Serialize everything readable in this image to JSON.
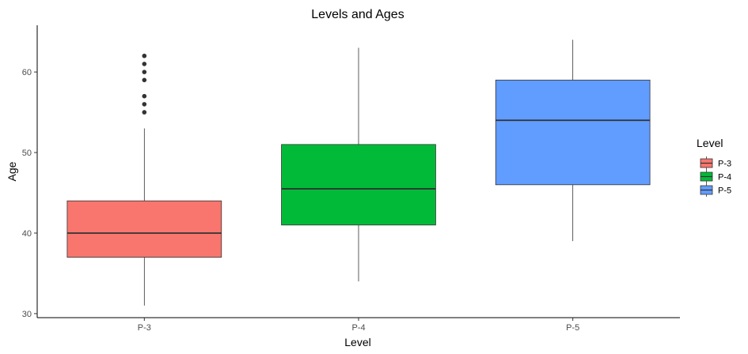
{
  "chart_data": {
    "type": "boxplot",
    "title": "Levels and Ages",
    "xlabel": "Level",
    "ylabel": "Age",
    "ylim": [
      29.5,
      65.8
    ],
    "yticks": [
      30,
      40,
      50,
      60
    ],
    "grid": false,
    "legend": {
      "title": "Level",
      "placement": "right",
      "entries": [
        "P-3",
        "P-4",
        "P-5"
      ]
    },
    "categories": [
      "P-3",
      "P-4",
      "P-5"
    ],
    "boxes": [
      {
        "category": "P-3",
        "color": "#F8766D",
        "whisker_low": 31,
        "q1": 37,
        "median": 40,
        "q3": 44,
        "whisker_high": 53,
        "outliers": [
          55,
          56,
          57,
          59,
          60,
          61,
          62
        ]
      },
      {
        "category": "P-4",
        "color": "#00BA38",
        "whisker_low": 34,
        "q1": 41,
        "median": 45.5,
        "q3": 51,
        "whisker_high": 63,
        "outliers": []
      },
      {
        "category": "P-5",
        "color": "#619CFF",
        "whisker_low": 39,
        "q1": 46,
        "median": 54,
        "q3": 59,
        "whisker_high": 64,
        "outliers": []
      }
    ]
  }
}
